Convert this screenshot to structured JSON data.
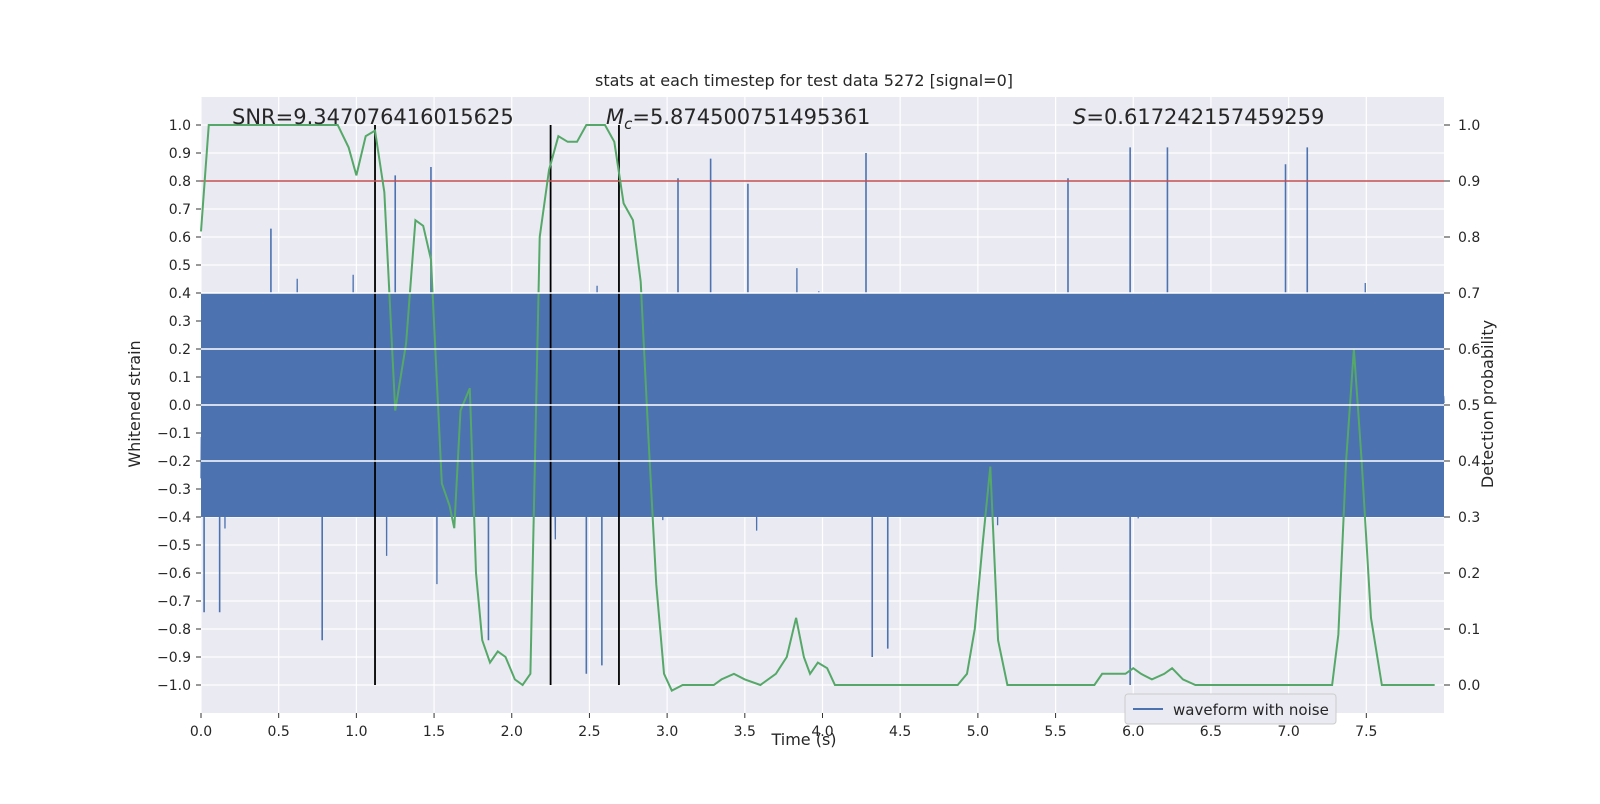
{
  "chart_data": {
    "type": "line",
    "title": "stats at each timestep for test data 5272 [signal=0]",
    "xlabel": "Time (s)",
    "ylabel_left": "Whitened strain",
    "ylabel_right": "Detection probability",
    "xlim": [
      0.0,
      8.0
    ],
    "ylim_left": [
      -1.1,
      1.1
    ],
    "ylim_right": [
      -0.05,
      1.05
    ],
    "xticks": [
      0.0,
      0.5,
      1.0,
      1.5,
      2.0,
      2.5,
      3.0,
      3.5,
      4.0,
      4.5,
      5.0,
      5.5,
      6.0,
      6.5,
      7.0,
      7.5
    ],
    "xtick_labels": [
      "0.0",
      "0.5",
      "1.0",
      "1.5",
      "2.0",
      "2.5",
      "3.0",
      "3.5",
      "4.0",
      "4.5",
      "5.0",
      "5.5",
      "6.0",
      "6.5",
      "7.0",
      "7.5"
    ],
    "yticks_left": [
      1.0,
      0.9,
      0.8,
      0.7,
      0.6,
      0.5,
      0.4,
      0.3,
      0.2,
      0.1,
      0.0,
      -0.1,
      -0.2,
      -0.3,
      -0.4,
      -0.5,
      -0.6,
      -0.7,
      -0.8,
      -0.9,
      -1.0
    ],
    "ytick_labels_left": [
      "1.0",
      "0.9",
      "0.8",
      "0.7",
      "0.6",
      "0.5",
      "0.4",
      "0.3",
      "0.2",
      "0.1",
      "0.0",
      "−0.1",
      "−0.2",
      "−0.3",
      "−0.4",
      "−0.5",
      "−0.6",
      "−0.7",
      "−0.8",
      "−0.9",
      "−1.0"
    ],
    "yticks_right": [
      1.0,
      0.9,
      0.8,
      0.7,
      0.6,
      0.5,
      0.4,
      0.3,
      0.2,
      0.1,
      0.0
    ],
    "ytick_labels_right": [
      "1.0",
      "0.9",
      "0.8",
      "0.7",
      "0.6",
      "0.5",
      "0.4",
      "0.3",
      "0.2",
      "0.1",
      "0.0"
    ],
    "grid": true,
    "background": "#EAEAF2",
    "annotations": {
      "snr": "SNR=9.347076416015625",
      "mc_prefix": "M",
      "mc_sub": "c",
      "mc_value": "=5.874500751495361",
      "s_prefix": "S",
      "s_value": "=0.617242157459259"
    },
    "series": [
      {
        "name": "waveform with noise",
        "axis": "left",
        "color": "#4C72B0",
        "kind": "noisy_band",
        "typical_amplitude": 0.4,
        "peak_maxima": [
          {
            "x": 0.45,
            "y": 0.63
          },
          {
            "x": 1.25,
            "y": 0.82
          },
          {
            "x": 1.48,
            "y": 0.85
          },
          {
            "x": 3.07,
            "y": 0.81
          },
          {
            "x": 3.28,
            "y": 0.88
          },
          {
            "x": 3.52,
            "y": 0.79
          },
          {
            "x": 4.28,
            "y": 0.9
          },
          {
            "x": 5.58,
            "y": 0.81
          },
          {
            "x": 5.98,
            "y": 0.92
          },
          {
            "x": 6.22,
            "y": 0.92
          },
          {
            "x": 6.98,
            "y": 0.86
          },
          {
            "x": 7.12,
            "y": 0.92
          }
        ],
        "peak_minima": [
          {
            "x": 0.02,
            "y": -0.74
          },
          {
            "x": 0.12,
            "y": -0.74
          },
          {
            "x": 0.78,
            "y": -0.84
          },
          {
            "x": 1.85,
            "y": -0.84
          },
          {
            "x": 2.48,
            "y": -0.96
          },
          {
            "x": 2.58,
            "y": -0.93
          },
          {
            "x": 4.32,
            "y": -0.9
          },
          {
            "x": 4.42,
            "y": -0.87
          },
          {
            "x": 5.98,
            "y": -1.0
          }
        ]
      },
      {
        "name": "",
        "axis": "right",
        "color": "#55A868",
        "x": [
          0.0,
          0.05,
          0.12,
          0.2,
          0.3,
          0.4,
          0.5,
          0.6,
          0.7,
          0.8,
          0.88,
          0.95,
          1.0,
          1.06,
          1.12,
          1.18,
          1.25,
          1.32,
          1.38,
          1.43,
          1.48,
          1.55,
          1.6,
          1.63,
          1.67,
          1.73,
          1.77,
          1.81,
          1.86,
          1.91,
          1.96,
          2.02,
          2.07,
          2.12,
          2.18,
          2.24,
          2.3,
          2.36,
          2.42,
          2.48,
          2.54,
          2.6,
          2.66,
          2.72,
          2.78,
          2.83,
          2.88,
          2.93,
          2.98,
          3.03,
          3.1,
          3.2,
          3.3,
          3.35,
          3.43,
          3.5,
          3.6,
          3.7,
          3.77,
          3.83,
          3.88,
          3.92,
          3.97,
          4.03,
          4.08,
          4.15,
          4.2,
          4.3,
          4.4,
          4.5,
          4.6,
          4.7,
          4.8,
          4.87,
          4.93,
          4.98,
          5.03,
          5.08,
          5.13,
          5.19,
          5.25,
          5.35,
          5.45,
          5.55,
          5.65,
          5.75,
          5.8,
          5.85,
          5.9,
          5.95,
          6.0,
          6.05,
          6.12,
          6.2,
          6.25,
          6.32,
          6.4,
          6.5,
          6.6,
          6.7,
          6.8,
          6.9,
          7.0,
          7.1,
          7.2,
          7.28,
          7.32,
          7.37,
          7.42,
          7.47,
          7.53,
          7.6,
          7.65,
          7.7,
          7.8,
          7.88,
          7.94
        ],
        "values": [
          0.81,
          1.0,
          1.0,
          1.0,
          1.0,
          1.0,
          1.0,
          1.0,
          1.0,
          1.0,
          1.0,
          0.96,
          0.91,
          0.98,
          0.99,
          0.88,
          0.49,
          0.61,
          0.83,
          0.82,
          0.76,
          0.36,
          0.32,
          0.28,
          0.49,
          0.53,
          0.2,
          0.08,
          0.04,
          0.06,
          0.05,
          0.01,
          0.0,
          0.02,
          0.8,
          0.92,
          0.98,
          0.97,
          0.97,
          1.0,
          1.0,
          1.0,
          0.97,
          0.86,
          0.83,
          0.72,
          0.44,
          0.18,
          0.02,
          -0.01,
          0.0,
          0.0,
          0.0,
          0.01,
          0.02,
          0.01,
          0.0,
          0.02,
          0.05,
          0.12,
          0.05,
          0.02,
          0.04,
          0.03,
          0.0,
          0.0,
          0.0,
          0.0,
          0.0,
          0.0,
          0.0,
          0.0,
          0.0,
          0.0,
          0.02,
          0.1,
          0.25,
          0.39,
          0.08,
          0.0,
          0.0,
          0.0,
          0.0,
          0.0,
          0.0,
          0.0,
          0.02,
          0.02,
          0.02,
          0.02,
          0.03,
          0.02,
          0.01,
          0.02,
          0.03,
          0.01,
          0.0,
          0.0,
          0.0,
          0.0,
          0.0,
          0.0,
          0.0,
          0.0,
          0.0,
          0.0,
          0.09,
          0.4,
          0.6,
          0.4,
          0.12,
          0.0,
          0.0,
          0.0,
          0.0,
          0.0,
          0.0
        ]
      }
    ],
    "threshold": {
      "axis": "right",
      "y": 0.9,
      "color": "#C44E52"
    },
    "vertical_lines": [
      1.12,
      2.25,
      2.69
    ],
    "vertical_line_color": "#000000",
    "legend": {
      "label": "waveform with noise",
      "placement": "lower-right"
    }
  }
}
